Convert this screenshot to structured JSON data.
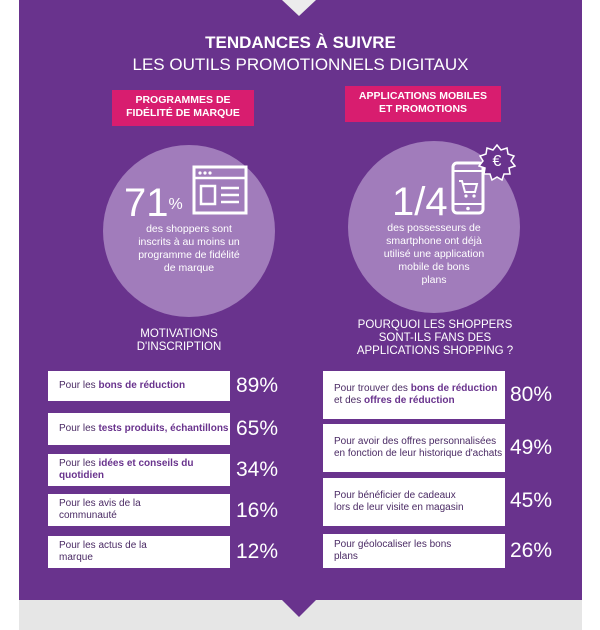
{
  "header": {
    "line1": "TENDANCES À SUIVRE",
    "line2": "LES OUTILS PROMOTIONNELS DIGITAUX"
  },
  "left": {
    "tag_line1": "PROGRAMMES DE",
    "tag_line2": "FIDÉLITÉ DE MARQUE",
    "stat": "71",
    "stat_sup": "%",
    "desc": [
      "des shoppers sont",
      "inscrits à au moins un",
      "programme de fidélité",
      "de marque"
    ],
    "section_line1": "MOTIVATIONS",
    "section_line2": "D'INSCRIPTION",
    "rows": [
      {
        "pre": "Pour les ",
        "bold": "bons de réduction",
        "post": "",
        "pct": "89%"
      },
      {
        "pre": "Pour les ",
        "bold": "tests produits, échantillons",
        "post": "",
        "pct": "65%"
      },
      {
        "pre": "Pour les ",
        "bold": "idées et conseils du quotidien",
        "post": "",
        "pct": "34%"
      },
      {
        "pre": "Pour les avis de la communauté",
        "bold": "",
        "post": "",
        "pct": "16%"
      },
      {
        "pre": "Pour les actus de la marque",
        "bold": "",
        "post": "",
        "pct": "12%"
      }
    ]
  },
  "right": {
    "tag_line1": "APPLICATIONS MOBILES",
    "tag_line2": "ET PROMOTIONS",
    "stat": "1/4",
    "euro": "€",
    "desc": [
      "des possesseurs de",
      "smartphone ont déjà",
      "utilisé une application",
      "mobile de bons",
      "plans"
    ],
    "section_line1": "POURQUOI LES SHOPPERS",
    "section_line2": "SONT-ILS FANS DES",
    "section_line3": "APPLICATIONS SHOPPING ?",
    "rows": [
      {
        "pre": "Pour trouver des ",
        "bold": "bons de réduction",
        "mid": " et des ",
        "bold2": "offres de réduction",
        "pct": "80%"
      },
      {
        "pre": "Pour avoir des offres personnalisées en fonction de leur historique d'achats",
        "bold": "",
        "mid": "",
        "bold2": "",
        "pct": "49%"
      },
      {
        "pre": "Pour bénéficier de cadeaux lors de leur visite en magasin",
        "bold": "",
        "mid": "",
        "bold2": "",
        "pct": "45%"
      },
      {
        "pre": "Pour géolocaliser les bons plans",
        "bold": "",
        "mid": "",
        "bold2": "",
        "pct": "26%"
      }
    ]
  },
  "colors": {
    "panel": "#69338d",
    "accent": "#d81d6f",
    "circle": "#a17cbb"
  }
}
